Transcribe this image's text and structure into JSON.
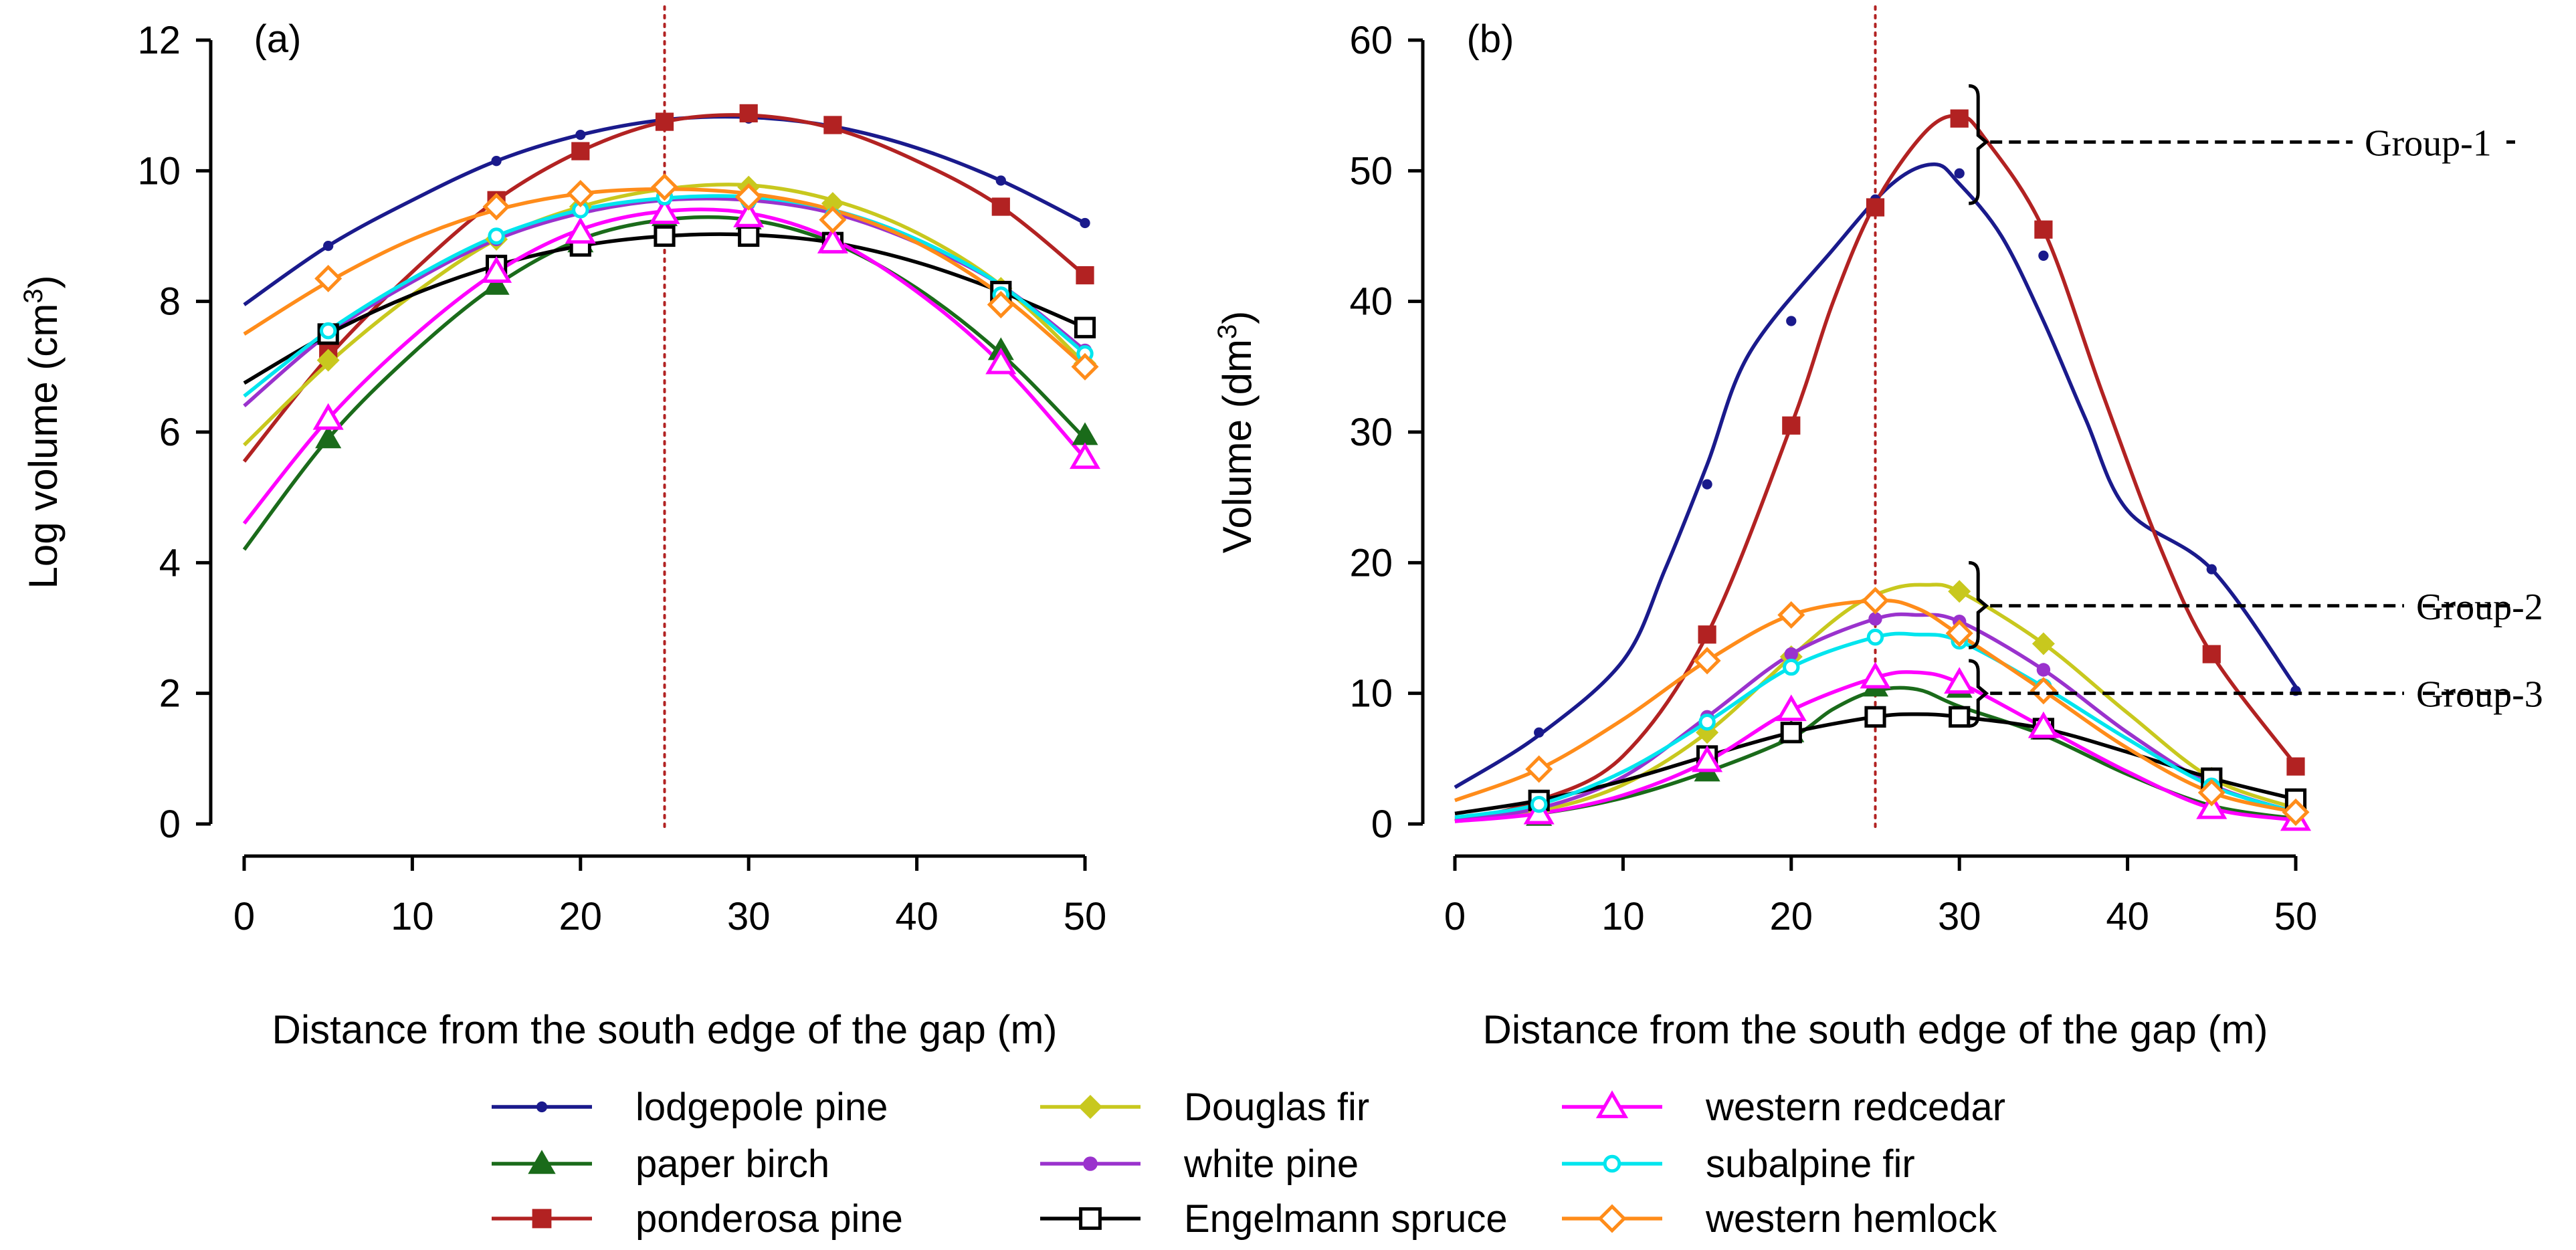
{
  "chart_data": [
    {
      "type": "line",
      "panel": "(a)",
      "xlabel": "Distance from the south edge of the gap (m)",
      "ylabel": "Log volume (cm",
      "ylabel_sup": "3",
      "ylabel_close": ")",
      "xlim": [
        0,
        50
      ],
      "ylim": [
        0,
        12
      ],
      "xticks": [
        "0",
        "10",
        "20",
        "30",
        "40",
        "50"
      ],
      "yticks": [
        "0",
        "2",
        "4",
        "6",
        "8",
        "10",
        "12"
      ],
      "reference_line_x": 25,
      "x_points": [
        5,
        15,
        20,
        25,
        30,
        35,
        45,
        50
      ],
      "series": [
        {
          "name": "lodgepole pine",
          "key": "lodgepole",
          "curve": [
            7.95,
            8.85,
            9.55,
            10.15,
            10.55,
            10.78,
            10.82,
            10.68,
            10.35,
            9.85,
            9.2
          ],
          "points": [
            8.85,
            10.15,
            10.55,
            10.75,
            10.8,
            10.7,
            9.85,
            9.2
          ]
        },
        {
          "name": "paper birch",
          "key": "birch",
          "curve": [
            4.2,
            5.9,
            7.2,
            8.25,
            8.95,
            9.25,
            9.25,
            8.9,
            8.2,
            7.2,
            5.9
          ],
          "points": [
            5.9,
            8.25,
            8.9,
            9.3,
            9.25,
            8.9,
            7.25,
            5.95
          ]
        },
        {
          "name": "ponderosa pine",
          "key": "ponderosa",
          "curve": [
            5.55,
            7.15,
            8.45,
            9.55,
            10.3,
            10.75,
            10.85,
            10.65,
            10.15,
            9.45,
            8.4
          ],
          "points": [
            7.2,
            9.55,
            10.3,
            10.75,
            10.88,
            10.7,
            9.45,
            8.4
          ]
        },
        {
          "name": "Douglas fir",
          "key": "douglas",
          "curve": [
            5.8,
            7.05,
            8.1,
            8.95,
            9.45,
            9.72,
            9.78,
            9.55,
            9.05,
            8.25,
            7.05
          ],
          "points": [
            7.1,
            8.95,
            9.45,
            9.72,
            9.75,
            9.5,
            8.2,
            7.05
          ]
        },
        {
          "name": "white pine",
          "key": "whitepine",
          "curve": [
            6.4,
            7.5,
            8.3,
            8.95,
            9.35,
            9.55,
            9.55,
            9.35,
            8.9,
            8.25,
            7.25
          ],
          "points": [
            7.5,
            8.95,
            9.4,
            9.55,
            9.5,
            9.3,
            8.15,
            7.25
          ]
        },
        {
          "name": "Engelmann spruce",
          "key": "engelmann",
          "curve": [
            6.75,
            7.5,
            8.1,
            8.55,
            8.85,
            9.0,
            9.02,
            8.9,
            8.6,
            8.15,
            7.6
          ],
          "points": [
            7.5,
            8.55,
            8.85,
            9.0,
            9.0,
            8.9,
            8.15,
            7.6
          ]
        },
        {
          "name": "western redcedar",
          "key": "redcedar",
          "curve": [
            4.6,
            6.2,
            7.45,
            8.45,
            9.1,
            9.38,
            9.35,
            8.95,
            8.15,
            7.05,
            5.6
          ],
          "points": [
            6.2,
            8.45,
            9.05,
            9.35,
            9.3,
            8.9,
            7.05,
            5.6
          ]
        },
        {
          "name": "subalpine fir",
          "key": "subalpine",
          "curve": [
            6.55,
            7.55,
            8.35,
            9.0,
            9.4,
            9.58,
            9.6,
            9.4,
            8.95,
            8.25,
            7.2
          ],
          "points": [
            7.55,
            9.0,
            9.4,
            9.6,
            9.55,
            9.3,
            8.1,
            7.2
          ]
        },
        {
          "name": "western hemlock",
          "key": "hemlock",
          "curve": [
            7.5,
            8.3,
            8.95,
            9.4,
            9.65,
            9.72,
            9.65,
            9.4,
            8.9,
            8.1,
            7.0
          ],
          "points": [
            8.35,
            9.45,
            9.65,
            9.75,
            9.6,
            9.25,
            7.95,
            7.0
          ]
        }
      ]
    },
    {
      "type": "line",
      "panel": "(b)",
      "xlabel": "Distance from the south edge of the gap (m)",
      "ylabel": "Volume (dm",
      "ylabel_sup": "3",
      "ylabel_close": ")",
      "xlim": [
        0,
        50
      ],
      "ylim": [
        0,
        60
      ],
      "xticks": [
        "0",
        "10",
        "20",
        "30",
        "40",
        "50"
      ],
      "yticks": [
        "0",
        "10",
        "20",
        "30",
        "40",
        "50",
        "60"
      ],
      "reference_line_x": 25,
      "x_points": [
        5,
        15,
        20,
        25,
        30,
        35,
        45,
        50
      ],
      "groups": [
        {
          "label": "Group-1",
          "y": 52.2,
          "bracket_low": 47.5,
          "bracket_high": 56.5
        },
        {
          "label": "Group-2",
          "y": 16.7,
          "bracket_low": 13.5,
          "bracket_high": 20.0
        },
        {
          "label": "Group-3",
          "y": 10.0,
          "bracket_low": 7.5,
          "bracket_high": 12.5
        }
      ],
      "series": [
        {
          "name": "lodgepole pine",
          "key": "lodgepole",
          "curve": [
            2.8,
            6.8,
            12.5,
            19.5,
            27.5,
            36.0,
            44.0,
            49.0,
            50.5,
            49.0,
            45.0,
            38.5,
            31.0,
            24.0,
            19.5,
            10.5
          ],
          "curve_x": [
            0,
            5,
            10,
            12.5,
            15,
            17.5,
            22.5,
            26,
            28.5,
            30,
            32.5,
            35,
            37.5,
            40,
            45,
            50
          ],
          "points": [
            7.0,
            26.0,
            38.5,
            47.8,
            49.8,
            43.5,
            19.5,
            10.2
          ]
        },
        {
          "name": "paper birch",
          "key": "birch",
          "curve": [
            0.3,
            0.8,
            2.0,
            4.0,
            6.6,
            8.8,
            10.2,
            10.3,
            9.0,
            6.8,
            3.8,
            1.4,
            0.4
          ],
          "curve_x": [
            0,
            5,
            10,
            15,
            20,
            22.5,
            25,
            27.5,
            30,
            35,
            40,
            45,
            50
          ],
          "points": [
            0.6,
            4.0,
            7.0,
            10.5,
            10.4,
            7.2,
            1.4,
            0.4
          ]
        },
        {
          "name": "ponderosa pine",
          "key": "ponderosa",
          "curve": [
            0.2,
            1.8,
            5.2,
            14.5,
            30.5,
            40.0,
            47.5,
            53.0,
            54.2,
            52.5,
            45.5,
            33.0,
            21.0,
            13.0,
            4.5
          ],
          "curve_x": [
            0,
            5,
            10,
            15,
            20,
            22.5,
            25,
            28,
            30,
            31.5,
            35,
            38.5,
            42,
            45,
            50
          ],
          "points": [
            1.8,
            14.5,
            30.5,
            47.2,
            54.0,
            45.5,
            13.0,
            4.4
          ]
        },
        {
          "name": "Douglas fir",
          "key": "douglas",
          "curve": [
            0.3,
            1.0,
            3.0,
            7.0,
            12.8,
            16.5,
            18.0,
            18.3,
            17.8,
            13.8,
            8.5,
            3.5,
            1.2
          ],
          "curve_x": [
            0,
            5,
            10,
            15,
            20,
            23.5,
            26,
            28,
            30,
            35,
            40,
            45,
            50
          ],
          "points": [
            1.0,
            7.0,
            12.8,
            17.0,
            17.8,
            13.8,
            3.5,
            1.2
          ]
        },
        {
          "name": "white pine",
          "key": "whitepine",
          "curve": [
            0.4,
            1.2,
            3.6,
            8.2,
            13.0,
            15.7,
            16.0,
            15.5,
            11.8,
            7.0,
            3.0,
            0.9
          ],
          "curve_x": [
            0,
            5,
            10,
            15,
            20,
            25,
            27.5,
            30,
            35,
            40,
            45,
            50
          ],
          "points": [
            1.2,
            8.2,
            13.0,
            15.7,
            15.5,
            11.8,
            3.0,
            0.9
          ]
        },
        {
          "name": "Engelmann spruce",
          "key": "engelmann",
          "curve": [
            0.8,
            1.8,
            3.3,
            5.2,
            7.0,
            8.2,
            8.4,
            8.2,
            7.3,
            5.5,
            3.5,
            1.9
          ],
          "curve_x": [
            0,
            5,
            10,
            15,
            20,
            25,
            27.5,
            30,
            35,
            40,
            45,
            50
          ],
          "points": [
            1.8,
            5.2,
            7.0,
            8.2,
            8.2,
            7.3,
            3.5,
            1.9
          ]
        },
        {
          "name": "western redcedar",
          "key": "redcedar",
          "curve": [
            0.2,
            0.8,
            2.2,
            4.8,
            8.7,
            11.2,
            11.6,
            10.8,
            7.4,
            4.0,
            1.2,
            0.3
          ],
          "curve_x": [
            0,
            5,
            10,
            15,
            20,
            25,
            27.5,
            30,
            35,
            40,
            45,
            50
          ],
          "points": [
            0.8,
            4.8,
            8.7,
            11.2,
            10.8,
            7.4,
            1.2,
            0.3
          ]
        },
        {
          "name": "subalpine fir",
          "key": "subalpine",
          "curve": [
            0.5,
            1.5,
            4.0,
            7.8,
            12.0,
            14.3,
            14.5,
            14.0,
            10.5,
            6.5,
            2.9,
            0.9
          ],
          "curve_x": [
            0,
            5,
            10,
            15,
            20,
            25,
            27.5,
            30,
            35,
            40,
            45,
            50
          ],
          "points": [
            1.5,
            7.8,
            12.0,
            14.3,
            14.0,
            10.5,
            2.9,
            0.9
          ]
        },
        {
          "name": "western hemlock",
          "key": "hemlock",
          "curve": [
            1.8,
            4.2,
            8.0,
            12.5,
            16.0,
            17.1,
            16.5,
            14.5,
            10.2,
            5.8,
            2.4,
            0.9
          ],
          "curve_x": [
            0,
            5,
            10,
            15,
            20,
            25,
            27.5,
            30,
            35,
            40,
            45,
            50
          ],
          "points": [
            4.2,
            12.5,
            16.0,
            17.1,
            14.6,
            10.2,
            2.4,
            0.9
          ]
        }
      ]
    }
  ],
  "legend": [
    {
      "name": "lodgepole pine",
      "key": "lodgepole"
    },
    {
      "name": "paper birch",
      "key": "birch"
    },
    {
      "name": "ponderosa pine",
      "key": "ponderosa"
    },
    {
      "name": "Douglas fir",
      "key": "douglas"
    },
    {
      "name": "white pine",
      "key": "whitepine"
    },
    {
      "name": "Engelmann spruce",
      "key": "engelmann"
    },
    {
      "name": "western redcedar",
      "key": "redcedar"
    },
    {
      "name": "subalpine fir",
      "key": "subalpine"
    },
    {
      "name": "western hemlock",
      "key": "hemlock"
    }
  ],
  "styles": {
    "lodgepole": {
      "color": "#1a1a8c",
      "marker": "dot"
    },
    "birch": {
      "color": "#1a6b1a",
      "marker": "triangle-filled"
    },
    "ponderosa": {
      "color": "#b22222",
      "marker": "square-filled"
    },
    "douglas": {
      "color": "#c8c81e",
      "marker": "diamond-filled"
    },
    "whitepine": {
      "color": "#9a32cd",
      "marker": "circle-filled"
    },
    "engelmann": {
      "color": "#000000",
      "marker": "square-open"
    },
    "redcedar": {
      "color": "#ff00ff",
      "marker": "triangle-open"
    },
    "subalpine": {
      "color": "#00e5ee",
      "marker": "circle-open"
    },
    "hemlock": {
      "color": "#ff8c1a",
      "marker": "diamond-open"
    }
  },
  "reference_line_color": "#b22222"
}
